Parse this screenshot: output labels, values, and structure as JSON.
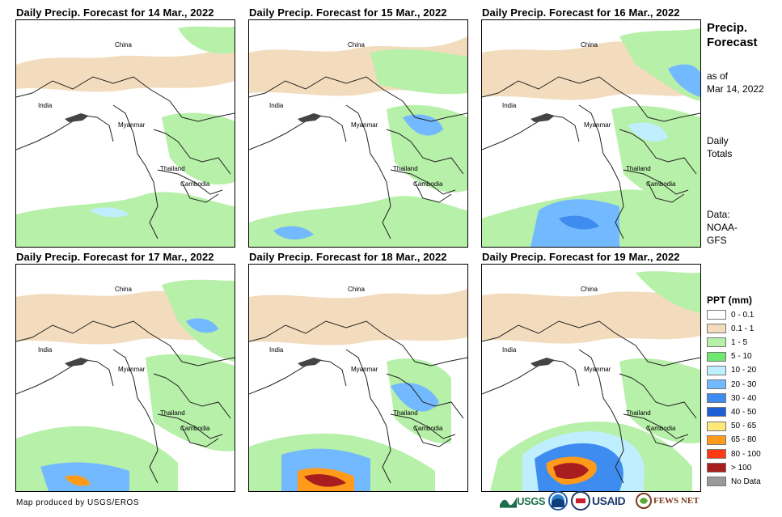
{
  "panels": [
    {
      "title": "Daily Precip. Forecast for 14 Mar., 2022"
    },
    {
      "title": "Daily Precip. Forecast for 15 Mar., 2022"
    },
    {
      "title": "Daily Precip. Forecast for 16 Mar., 2022"
    },
    {
      "title": "Daily Precip. Forecast for 17 Mar., 2022"
    },
    {
      "title": "Daily Precip. Forecast for 18 Mar., 2022"
    },
    {
      "title": "Daily Precip. Forecast for 19 Mar., 2022"
    }
  ],
  "countries": {
    "china": "China",
    "india": "India",
    "myanmar": "Myanmar",
    "thailand": "Thailand",
    "cambodia": "Cambodia"
  },
  "sidebar": {
    "title_line1": "Precip.",
    "title_line2": "Forecast",
    "asof_line1": "as of",
    "asof_line2": "Mar 14, 2022",
    "daily_line1": "Daily",
    "daily_line2": "Totals",
    "data_line1": "Data:",
    "data_line2": "NOAA-",
    "data_line3": "GFS"
  },
  "legend": {
    "title": "PPT (mm)",
    "items": [
      {
        "label": "0 - 0.1",
        "color": "#ffffff"
      },
      {
        "label": "0.1 - 1",
        "color": "#f3dcbd"
      },
      {
        "label": "1 - 5",
        "color": "#b7f0a8"
      },
      {
        "label": "5 - 10",
        "color": "#6ee86e"
      },
      {
        "label": "10 - 20",
        "color": "#bfefff"
      },
      {
        "label": "20 - 30",
        "color": "#73b9ff"
      },
      {
        "label": "30 - 40",
        "color": "#3f8cf0"
      },
      {
        "label": "40 - 50",
        "color": "#1f5fd6"
      },
      {
        "label": "50 - 65",
        "color": "#ffe87a"
      },
      {
        "label": "65 - 80",
        "color": "#ff9a1a"
      },
      {
        "label": "80 - 100",
        "color": "#ff3a12"
      },
      {
        "label": "> 100",
        "color": "#a81d1d"
      },
      {
        "label": "No Data",
        "color": "#9a9a9a"
      }
    ]
  },
  "footer": {
    "credit": "Map produced by USGS/EROS",
    "logo_usgs": "USGS",
    "logo_usaid": "USAID",
    "logo_fewsnet": "FEWS NET"
  }
}
